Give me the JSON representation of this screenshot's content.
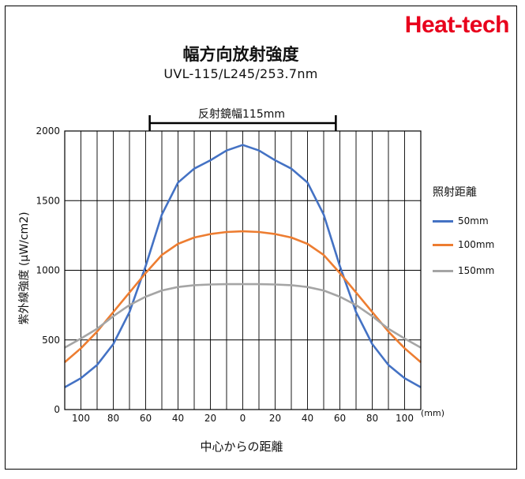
{
  "brand": "Heat-tech",
  "colors": {
    "brand": "#e8001c",
    "s50": "#4472c4",
    "s100": "#ed7d31",
    "s150": "#a5a5a5"
  },
  "chart_data": {
    "type": "line",
    "title": "幅方向放射強度",
    "subtitle": "UVL-115/L245/253.7nm",
    "xlabel": "中心からの距離",
    "xunit": "(mm)",
    "ylabel": "紫外線強度 (μW/cm2)",
    "xlim": [
      -110,
      110
    ],
    "ylim": [
      0,
      2000
    ],
    "x_ticks": [
      -100,
      -80,
      -60,
      -40,
      -20,
      0,
      20,
      40,
      60,
      80,
      100
    ],
    "x_tick_labels": [
      "100",
      "80",
      "60",
      "40",
      "20",
      "0",
      "20",
      "40",
      "60",
      "80",
      "100"
    ],
    "y_ticks": [
      0,
      500,
      1000,
      1500,
      2000
    ],
    "y_tick_labels": [
      "0",
      "500",
      "1000",
      "1500",
      "2000"
    ],
    "grid": true,
    "legend_title": "照射距離",
    "legend_position": "right",
    "annotation": {
      "text": "反射鏡幅115mm",
      "from": -57.5,
      "to": 57.5
    },
    "series": [
      {
        "name": "50mm",
        "x": [
          -110,
          -100,
          -90,
          -80,
          -70,
          -60,
          -50,
          -40,
          -30,
          -20,
          -10,
          0,
          10,
          20,
          30,
          40,
          50,
          60,
          70,
          80,
          90,
          100,
          110
        ],
        "values": [
          160,
          225,
          320,
          470,
          700,
          1030,
          1400,
          1630,
          1730,
          1790,
          1860,
          1900,
          1860,
          1790,
          1730,
          1630,
          1400,
          1030,
          700,
          470,
          320,
          225,
          160
        ]
      },
      {
        "name": "100mm",
        "x": [
          -110,
          -100,
          -90,
          -80,
          -70,
          -60,
          -50,
          -40,
          -30,
          -20,
          -10,
          0,
          10,
          20,
          30,
          40,
          50,
          60,
          70,
          80,
          90,
          100,
          110
        ],
        "values": [
          340,
          440,
          560,
          700,
          840,
          980,
          1110,
          1190,
          1235,
          1260,
          1275,
          1280,
          1275,
          1260,
          1235,
          1190,
          1110,
          980,
          840,
          700,
          560,
          440,
          340
        ]
      },
      {
        "name": "150mm",
        "x": [
          -110,
          -100,
          -90,
          -80,
          -70,
          -60,
          -50,
          -40,
          -30,
          -20,
          -10,
          0,
          10,
          20,
          30,
          40,
          50,
          60,
          70,
          80,
          90,
          100,
          110
        ],
        "values": [
          445,
          510,
          580,
          670,
          750,
          810,
          855,
          880,
          893,
          898,
          900,
          900,
          900,
          898,
          893,
          880,
          855,
          810,
          750,
          670,
          580,
          510,
          445
        ]
      }
    ]
  }
}
